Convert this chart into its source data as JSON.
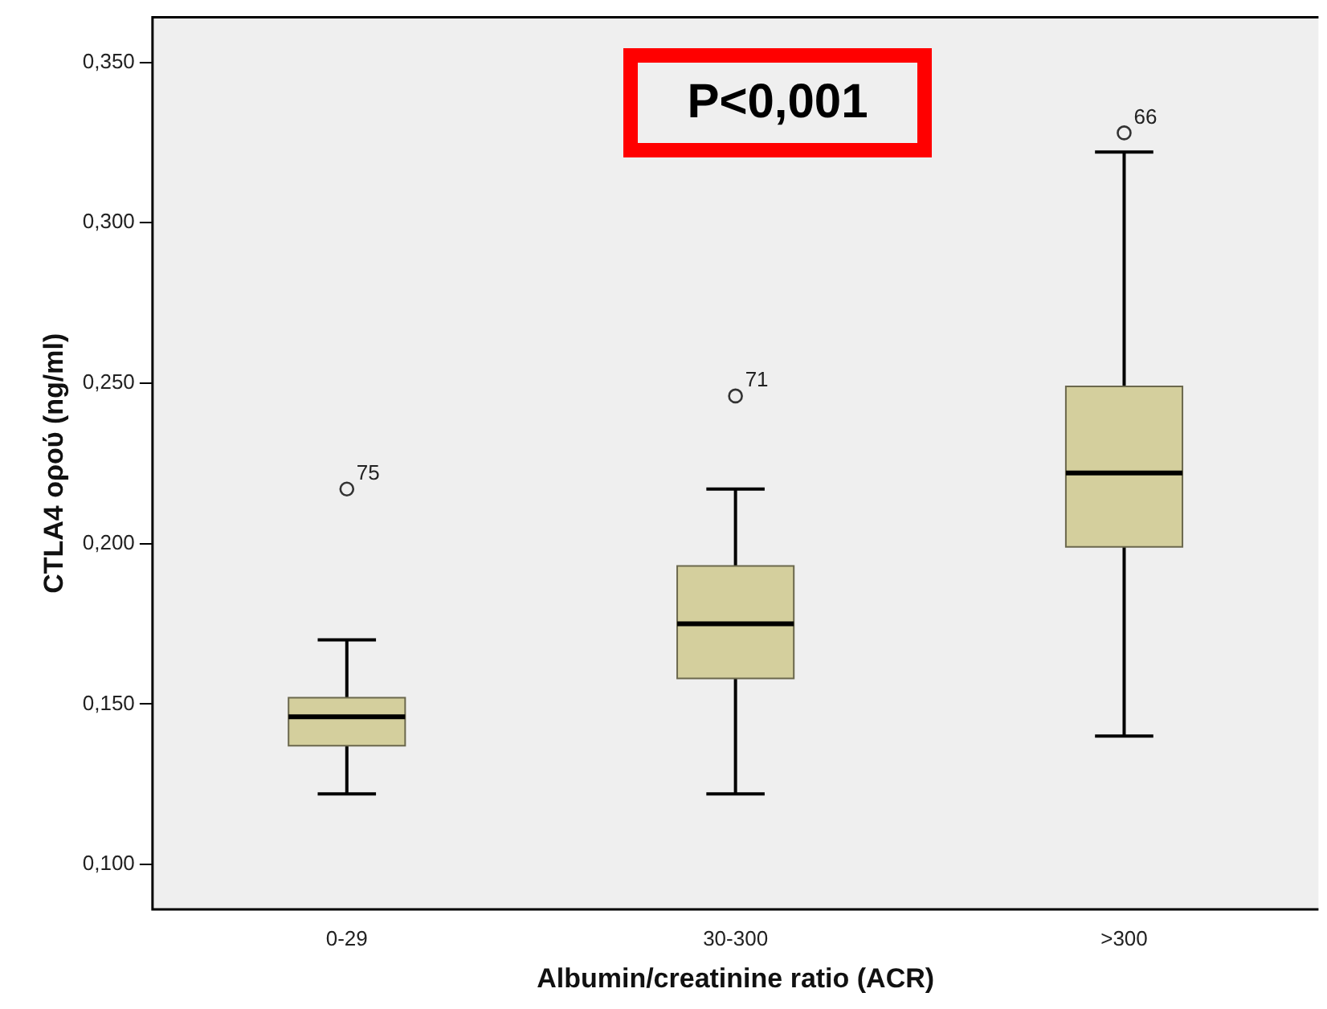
{
  "chart_data": {
    "type": "box",
    "xlabel": "Albumin/creatinine ratio (ACR)",
    "ylabel": "CTLA4 ορού (ng/ml)",
    "categories": [
      "0-29",
      "30-300",
      ">300"
    ],
    "color": "#d4cf9d",
    "marker": "circle",
    "grid": false,
    "legend": false,
    "boxes": [
      {
        "low": 0.122,
        "q1": 0.137,
        "median": 0.146,
        "q3": 0.152,
        "high": 0.17,
        "outliers": [
          0.217
        ]
      },
      {
        "low": 0.122,
        "q1": 0.158,
        "median": 0.175,
        "q3": 0.193,
        "high": 0.217,
        "outliers": [
          0.246
        ]
      },
      {
        "low": 0.14,
        "q1": 0.199,
        "median": 0.222,
        "q3": 0.249,
        "high": 0.322,
        "outliers": [
          0.328
        ]
      }
    ],
    "ylim": [
      0.086,
      0.364
    ],
    "yticks": [
      {
        "value": 0.1,
        "label": "0,100"
      },
      {
        "value": 0.15,
        "label": "0,150"
      },
      {
        "value": 0.2,
        "label": "0,200"
      },
      {
        "value": 0.25,
        "label": "0,250"
      },
      {
        "value": 0.3,
        "label": "0,300"
      },
      {
        "value": 0.35,
        "label": "0,350"
      }
    ],
    "annotations": [
      "P<0,001",
      "75",
      "71",
      "66"
    ]
  }
}
